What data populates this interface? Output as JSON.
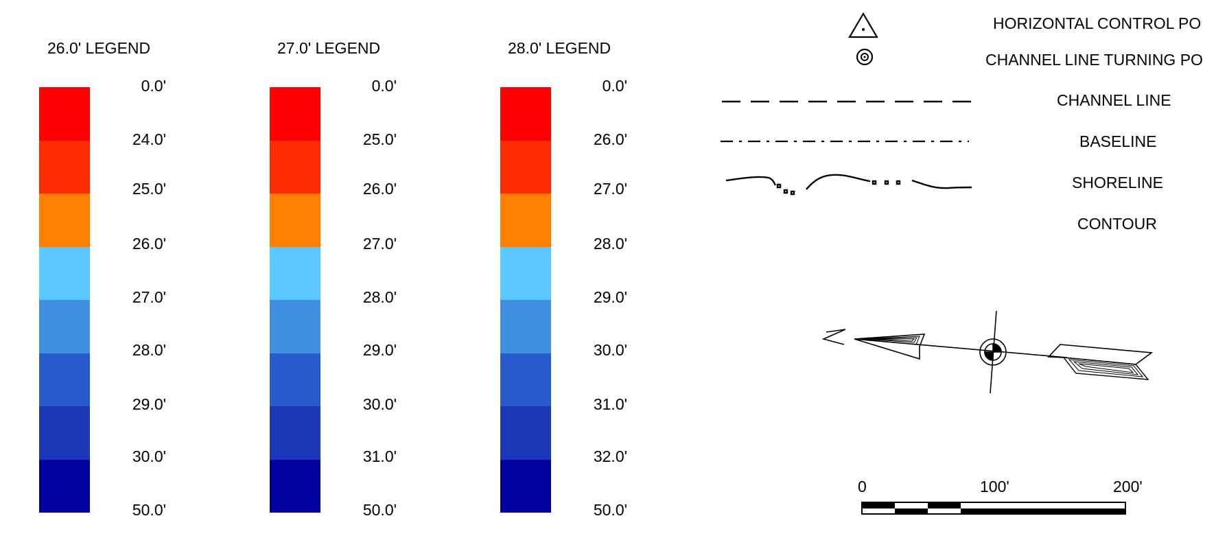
{
  "depth_legends": [
    {
      "title": "26.0' LEGEND",
      "labels": [
        "0.0'",
        "24.0'",
        "25.0'",
        "26.0'",
        "27.0'",
        "28.0'",
        "29.0'",
        "30.0'",
        "50.0'"
      ]
    },
    {
      "title": "27.0' LEGEND",
      "labels": [
        "0.0'",
        "25.0'",
        "26.0'",
        "27.0'",
        "28.0'",
        "29.0'",
        "30.0'",
        "31.0'",
        "50.0'"
      ]
    },
    {
      "title": "28.0' LEGEND",
      "labels": [
        "0.0'",
        "26.0'",
        "27.0'",
        "28.0'",
        "29.0'",
        "30.0'",
        "31.0'",
        "32.0'",
        "50.0'"
      ]
    }
  ],
  "color_ramp": [
    "#ff0000",
    "#ff2a00",
    "#ff7f00",
    "#5bc8ff",
    "#418fe2",
    "#2a59cc",
    "#1b37b8",
    "#00009d"
  ],
  "symbols": {
    "horizontal_control": "HORIZONTAL CONTROL PO",
    "channel_turning": "CHANNEL LINE TURNING PO",
    "channel_line": "CHANNEL LINE",
    "baseline": "BASELINE",
    "shoreline": "SHORELINE",
    "contour": "CONTOUR"
  },
  "north_arrow": {
    "letter": "N",
    "icon": "north-arrow-icon"
  },
  "scale_bar": {
    "labels": [
      "0",
      "100'",
      "200'"
    ]
  }
}
